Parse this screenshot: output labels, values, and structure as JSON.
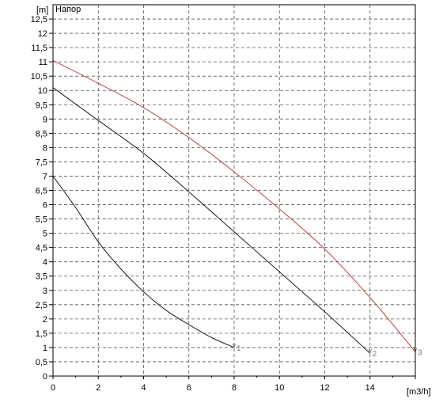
{
  "chart_data": {
    "type": "line",
    "title": "Напор",
    "xlabel": "[m3/h]",
    "ylabel": "[m]",
    "xlim": [
      0,
      16
    ],
    "ylim": [
      0,
      13
    ],
    "grid": true,
    "x_ticks": [
      0,
      2,
      4,
      6,
      8,
      10,
      12,
      14
    ],
    "x_tick_labels": [
      "0",
      "2",
      "4",
      "6",
      "8",
      "10",
      "12",
      "14"
    ],
    "y_ticks": [
      0,
      0.5,
      1,
      1.5,
      2,
      2.5,
      3,
      3.5,
      4,
      4.5,
      5,
      5.5,
      6,
      6.5,
      7,
      7.5,
      8,
      8.5,
      9,
      9.5,
      10,
      10.5,
      11,
      11.5,
      12,
      12.5
    ],
    "y_tick_labels": [
      "0",
      "0,5",
      "1",
      "1,5",
      "2",
      "2,5",
      "3",
      "3,5",
      "4",
      "4,5",
      "5",
      "5,5",
      "6",
      "6,5",
      "7",
      "7,5",
      "8",
      "8,5",
      "9",
      "9,5",
      "10",
      "10,5",
      "11",
      "11,5",
      "12",
      "12,5"
    ],
    "series": [
      {
        "name": "1",
        "color": "#000000",
        "x": [
          0,
          1,
          2,
          3,
          4,
          5,
          6,
          7,
          8
        ],
        "y": [
          7.0,
          5.9,
          4.7,
          3.75,
          2.95,
          2.3,
          1.8,
          1.35,
          1.0
        ]
      },
      {
        "name": "2",
        "color": "#000000",
        "x": [
          0,
          2,
          4,
          6,
          8,
          10,
          12,
          14
        ],
        "y": [
          10.1,
          8.95,
          7.8,
          6.45,
          5.05,
          3.65,
          2.25,
          0.8
        ]
      },
      {
        "name": "3",
        "color": "#b03030",
        "x": [
          0,
          2,
          4,
          6,
          8,
          10,
          12,
          14,
          16
        ],
        "y": [
          11.05,
          10.25,
          9.4,
          8.35,
          7.15,
          5.85,
          4.45,
          2.75,
          0.85
        ]
      }
    ]
  }
}
